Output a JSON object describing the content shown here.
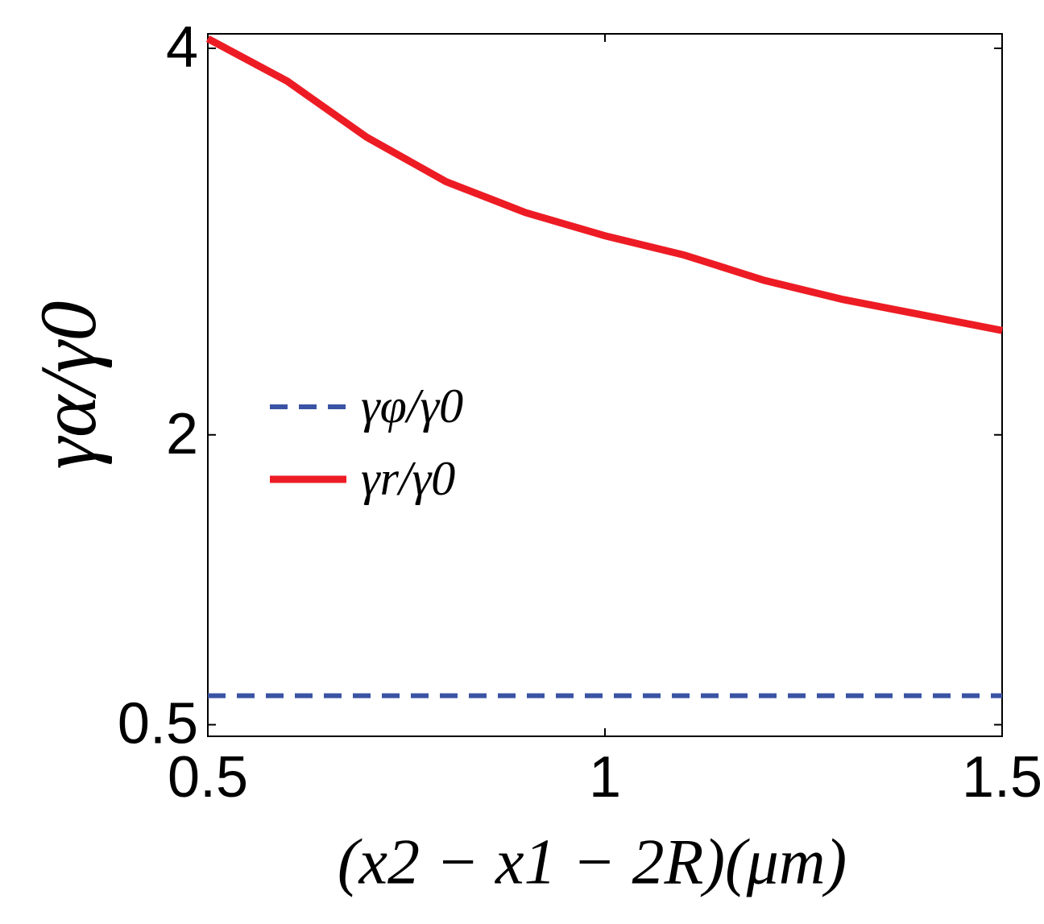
{
  "chart_data": {
    "type": "line",
    "x_label": "(x2 − x1 − 2R)(μm)",
    "y_label": "γα/γ0",
    "x": [
      0.5,
      0.6,
      0.7,
      0.8,
      0.9,
      1.0,
      1.1,
      1.2,
      1.3,
      1.4,
      1.5
    ],
    "series": [
      {
        "name": "γφ/γ0",
        "color": "#3a53a4",
        "dashed": true,
        "values": [
          0.65,
          0.65,
          0.65,
          0.65,
          0.65,
          0.65,
          0.65,
          0.65,
          0.65,
          0.65,
          0.65
        ]
      },
      {
        "name": "γr/γ0",
        "color": "#ed1c24",
        "dashed": false,
        "values": [
          4.05,
          3.83,
          3.54,
          3.31,
          3.15,
          3.03,
          2.93,
          2.8,
          2.7,
          2.62,
          2.54
        ]
      }
    ],
    "xlim": [
      0.5,
      1.5
    ],
    "ylim": [
      0.44,
      4.075
    ],
    "xticks": [
      0.5,
      1,
      1.5
    ],
    "yticks": [
      0.5,
      2,
      4
    ],
    "grid": false
  }
}
